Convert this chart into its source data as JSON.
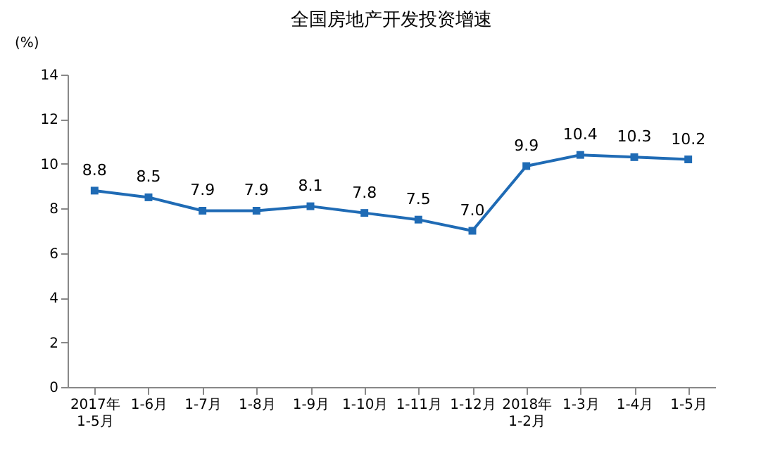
{
  "chart_data": {
    "type": "line",
    "title": "全国房地产开发投资增速",
    "ylabel": "(%)",
    "categories": [
      "2017年\n1-5月",
      "1-6月",
      "1-7月",
      "1-8月",
      "1-9月",
      "1-10月",
      "1-11月",
      "1-12月",
      "2018年\n1-2月",
      "1-3月",
      "1-4月",
      "1-5月"
    ],
    "series": [
      {
        "color": "#1f6bb5",
        "values": [
          8.8,
          8.5,
          7.9,
          7.9,
          8.1,
          7.8,
          7.5,
          7.0,
          9.9,
          10.4,
          10.3,
          10.2
        ]
      }
    ],
    "value_labels": [
      "8.8",
      "8.5",
      "7.9",
      "7.9",
      "8.1",
      "7.8",
      "7.5",
      "7.0",
      "9.9",
      "10.4",
      "10.3",
      "10.2"
    ],
    "ylim": [
      0,
      14
    ],
    "yticks": [
      0,
      2,
      4,
      6,
      8,
      10,
      12,
      14
    ],
    "grid": false,
    "marker": "square",
    "line_style": "solid"
  }
}
